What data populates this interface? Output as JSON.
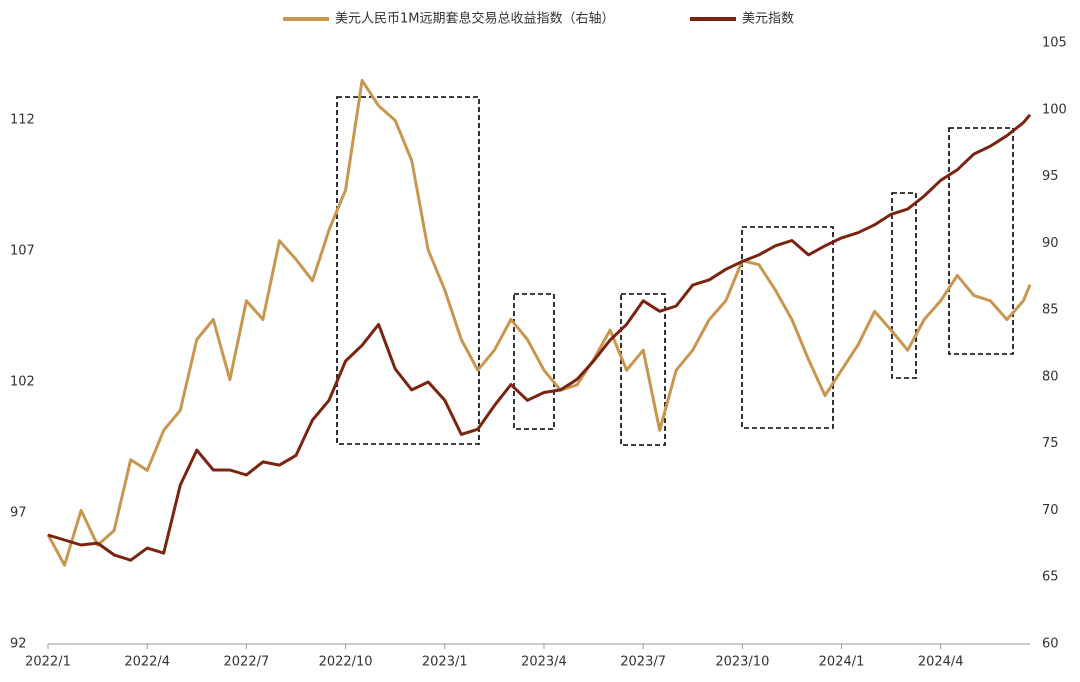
{
  "chart_data": {
    "type": "line",
    "x": [
      0,
      0.5,
      1,
      1.5,
      2,
      2.5,
      3,
      3.5,
      4,
      4.5,
      5,
      5.5,
      6,
      6.5,
      7,
      7.5,
      8,
      8.5,
      9,
      9.5,
      10,
      10.5,
      11,
      11.5,
      12,
      12.5,
      13,
      13.5,
      14,
      14.5,
      15,
      15.5,
      16,
      16.5,
      17,
      17.5,
      18,
      18.5,
      19,
      19.5,
      20,
      20.5,
      21,
      21.5,
      22,
      22.5,
      23,
      23.5,
      24,
      24.5,
      25,
      25.5,
      26,
      26.5,
      27,
      27.5,
      28,
      28.5,
      29,
      29.5,
      29.7
    ],
    "series": [
      {
        "name": "美元人民币1M远期套息交易总收益指数（右轴）",
        "color": "#c8964f",
        "axis": "y2",
        "values": [
          68.2,
          65.9,
          70.0,
          67.4,
          68.5,
          73.8,
          73.0,
          76.0,
          77.5,
          82.8,
          84.3,
          79.8,
          85.7,
          84.3,
          90.2,
          88.8,
          87.2,
          91.0,
          94.0,
          102.2,
          100.3,
          99.2,
          96.2,
          89.5,
          86.5,
          82.8,
          80.5,
          82.0,
          84.3,
          82.8,
          80.5,
          79.0,
          79.4,
          81.3,
          83.5,
          80.5,
          82.0,
          76.0,
          80.5,
          82.0,
          84.3,
          85.7,
          88.7,
          88.4,
          86.5,
          84.3,
          81.3,
          78.6,
          80.5,
          82.4,
          84.9,
          83.5,
          82.0,
          84.3,
          85.7,
          87.6,
          86.1,
          85.7,
          84.3,
          85.7,
          86.9
        ]
      },
      {
        "name": "美元指数",
        "color": "#7a2410",
        "values": [
          96.16,
          95.97,
          95.78,
          95.85,
          95.4,
          95.2,
          95.66,
          95.47,
          98.07,
          99.4,
          98.64,
          98.64,
          98.45,
          98.95,
          98.83,
          99.2,
          100.55,
          101.3,
          102.8,
          103.4,
          104.2,
          102.5,
          101.7,
          102.0,
          101.3,
          100.0,
          100.2,
          101.1,
          101.9,
          101.3,
          101.6,
          101.7,
          102.1,
          102.8,
          103.6,
          104.2,
          105.1,
          104.7,
          104.9,
          105.7,
          105.9,
          106.3,
          106.6,
          106.85,
          107.2,
          107.4,
          106.85,
          107.2,
          107.5,
          107.7,
          108.0,
          108.4,
          108.6,
          109.1,
          109.7,
          110.1,
          110.7,
          111.0,
          111.4,
          111.9,
          112.2
        ]
      }
    ],
    "xlim": [
      0,
      29.7
    ],
    "xticks": [
      {
        "value": 0,
        "label": "2022/1"
      },
      {
        "value": 3,
        "label": "2022/4"
      },
      {
        "value": 6,
        "label": "2022/7"
      },
      {
        "value": 9,
        "label": "2022/10"
      },
      {
        "value": 12,
        "label": "2023/1"
      },
      {
        "value": 15,
        "label": "2023/4"
      },
      {
        "value": 18,
        "label": "2023/7"
      },
      {
        "value": 21,
        "label": "2023/10"
      },
      {
        "value": 24,
        "label": "2024/1"
      },
      {
        "value": 27,
        "label": "2024/4"
      }
    ],
    "ylim": [
      92,
      115
    ],
    "yticks": [
      92,
      97,
      102,
      107,
      112
    ],
    "y2lim": [
      60,
      105
    ],
    "y2ticks": [
      60,
      65,
      70,
      75,
      80,
      85,
      90,
      95,
      100,
      105
    ]
  }
}
